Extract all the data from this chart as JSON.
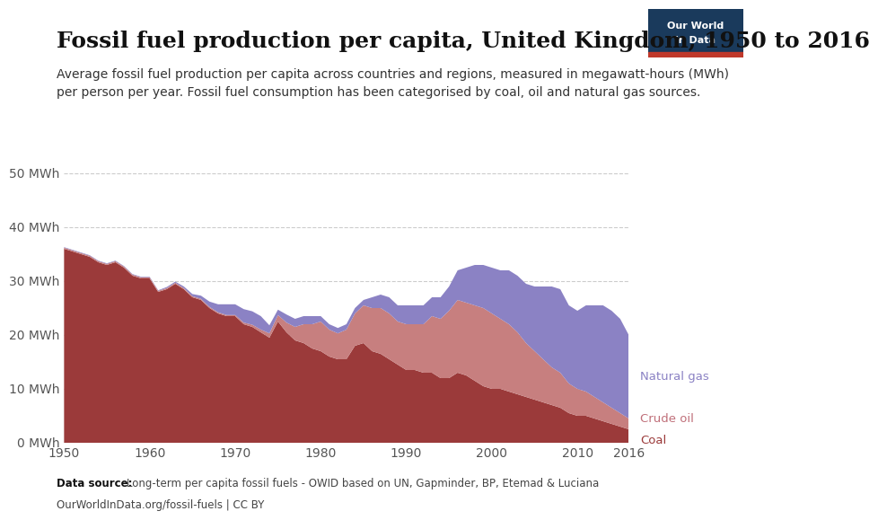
{
  "title": "Fossil fuel production per capita, United Kingdom, 1950 to 2016",
  "subtitle": "Average fossil fuel production per capita across countries and regions, measured in megawatt-hours (MWh)\nper person per year. Fossil fuel consumption has been categorised by coal, oil and natural gas sources.",
  "datasource_line1": "Data source: Long-term per capita fossil fuels - OWID based on UN, Gapminder, BP, Etemad & Luciana",
  "datasource_line2": "OurWorldInData.org/fossil-fuels | CC BY",
  "years": [
    1950,
    1951,
    1952,
    1953,
    1954,
    1955,
    1956,
    1957,
    1958,
    1959,
    1960,
    1961,
    1962,
    1963,
    1964,
    1965,
    1966,
    1967,
    1968,
    1969,
    1970,
    1971,
    1972,
    1973,
    1974,
    1975,
    1976,
    1977,
    1978,
    1979,
    1980,
    1981,
    1982,
    1983,
    1984,
    1985,
    1986,
    1987,
    1988,
    1989,
    1990,
    1991,
    1992,
    1993,
    1994,
    1995,
    1996,
    1997,
    1998,
    1999,
    2000,
    2001,
    2002,
    2003,
    2004,
    2005,
    2006,
    2007,
    2008,
    2009,
    2010,
    2011,
    2012,
    2013,
    2014,
    2015,
    2016
  ],
  "coal": [
    36.0,
    35.5,
    35.0,
    34.5,
    33.5,
    33.0,
    33.5,
    32.5,
    31.0,
    30.5,
    30.5,
    28.0,
    28.5,
    29.5,
    28.5,
    27.0,
    26.5,
    25.0,
    24.0,
    23.5,
    23.5,
    22.0,
    21.5,
    20.5,
    19.5,
    22.5,
    20.5,
    19.0,
    18.5,
    17.5,
    17.0,
    16.0,
    15.5,
    15.5,
    18.0,
    18.5,
    17.0,
    16.5,
    15.5,
    14.5,
    13.5,
    13.5,
    13.0,
    13.0,
    12.0,
    12.0,
    13.0,
    12.5,
    11.5,
    10.5,
    10.0,
    10.0,
    9.5,
    9.0,
    8.5,
    8.0,
    7.5,
    7.0,
    6.5,
    5.5,
    5.0,
    5.0,
    4.5,
    4.0,
    3.5,
    3.0,
    2.5
  ],
  "oil": [
    0.2,
    0.2,
    0.2,
    0.2,
    0.2,
    0.2,
    0.2,
    0.2,
    0.2,
    0.2,
    0.2,
    0.2,
    0.2,
    0.2,
    0.2,
    0.2,
    0.2,
    0.2,
    0.2,
    0.2,
    0.2,
    0.3,
    0.4,
    0.5,
    0.8,
    1.2,
    1.8,
    2.5,
    3.5,
    4.5,
    5.5,
    5.0,
    4.8,
    5.5,
    6.0,
    7.0,
    8.0,
    8.5,
    8.5,
    8.0,
    8.5,
    8.5,
    9.0,
    10.5,
    11.0,
    12.5,
    13.5,
    13.5,
    14.0,
    14.5,
    14.0,
    13.0,
    12.5,
    11.5,
    10.0,
    9.0,
    8.0,
    7.0,
    6.5,
    5.5,
    5.0,
    4.5,
    4.0,
    3.5,
    3.0,
    2.5,
    2.0
  ],
  "gas": [
    0.1,
    0.1,
    0.1,
    0.1,
    0.1,
    0.1,
    0.1,
    0.1,
    0.1,
    0.1,
    0.1,
    0.1,
    0.2,
    0.2,
    0.3,
    0.4,
    0.6,
    1.0,
    1.5,
    2.0,
    2.0,
    2.5,
    2.5,
    2.5,
    1.5,
    1.0,
    1.5,
    1.5,
    1.5,
    1.5,
    1.0,
    1.0,
    1.0,
    1.0,
    1.0,
    1.0,
    2.0,
    2.5,
    3.0,
    3.0,
    3.5,
    3.5,
    3.5,
    3.5,
    4.0,
    4.5,
    5.5,
    6.5,
    7.5,
    8.0,
    8.5,
    9.0,
    10.0,
    10.5,
    11.0,
    12.0,
    13.5,
    15.0,
    15.5,
    14.5,
    14.5,
    16.0,
    17.0,
    18.0,
    18.0,
    17.5,
    15.5
  ],
  "coal_color": "#9b3a3a",
  "oil_color": "#c77f7f",
  "gas_color": "#8b82c4",
  "background_color": "#ffffff",
  "owid_box_bg": "#1a3a5c",
  "owid_box_red": "#c0392b",
  "title_fontsize": 18,
  "subtitle_fontsize": 10,
  "tick_fontsize": 10,
  "yticks": [
    0,
    10,
    20,
    30,
    40,
    50
  ],
  "xticks": [
    1950,
    1960,
    1970,
    1980,
    1990,
    2000,
    2010,
    2016
  ],
  "ylim": [
    0,
    52
  ]
}
